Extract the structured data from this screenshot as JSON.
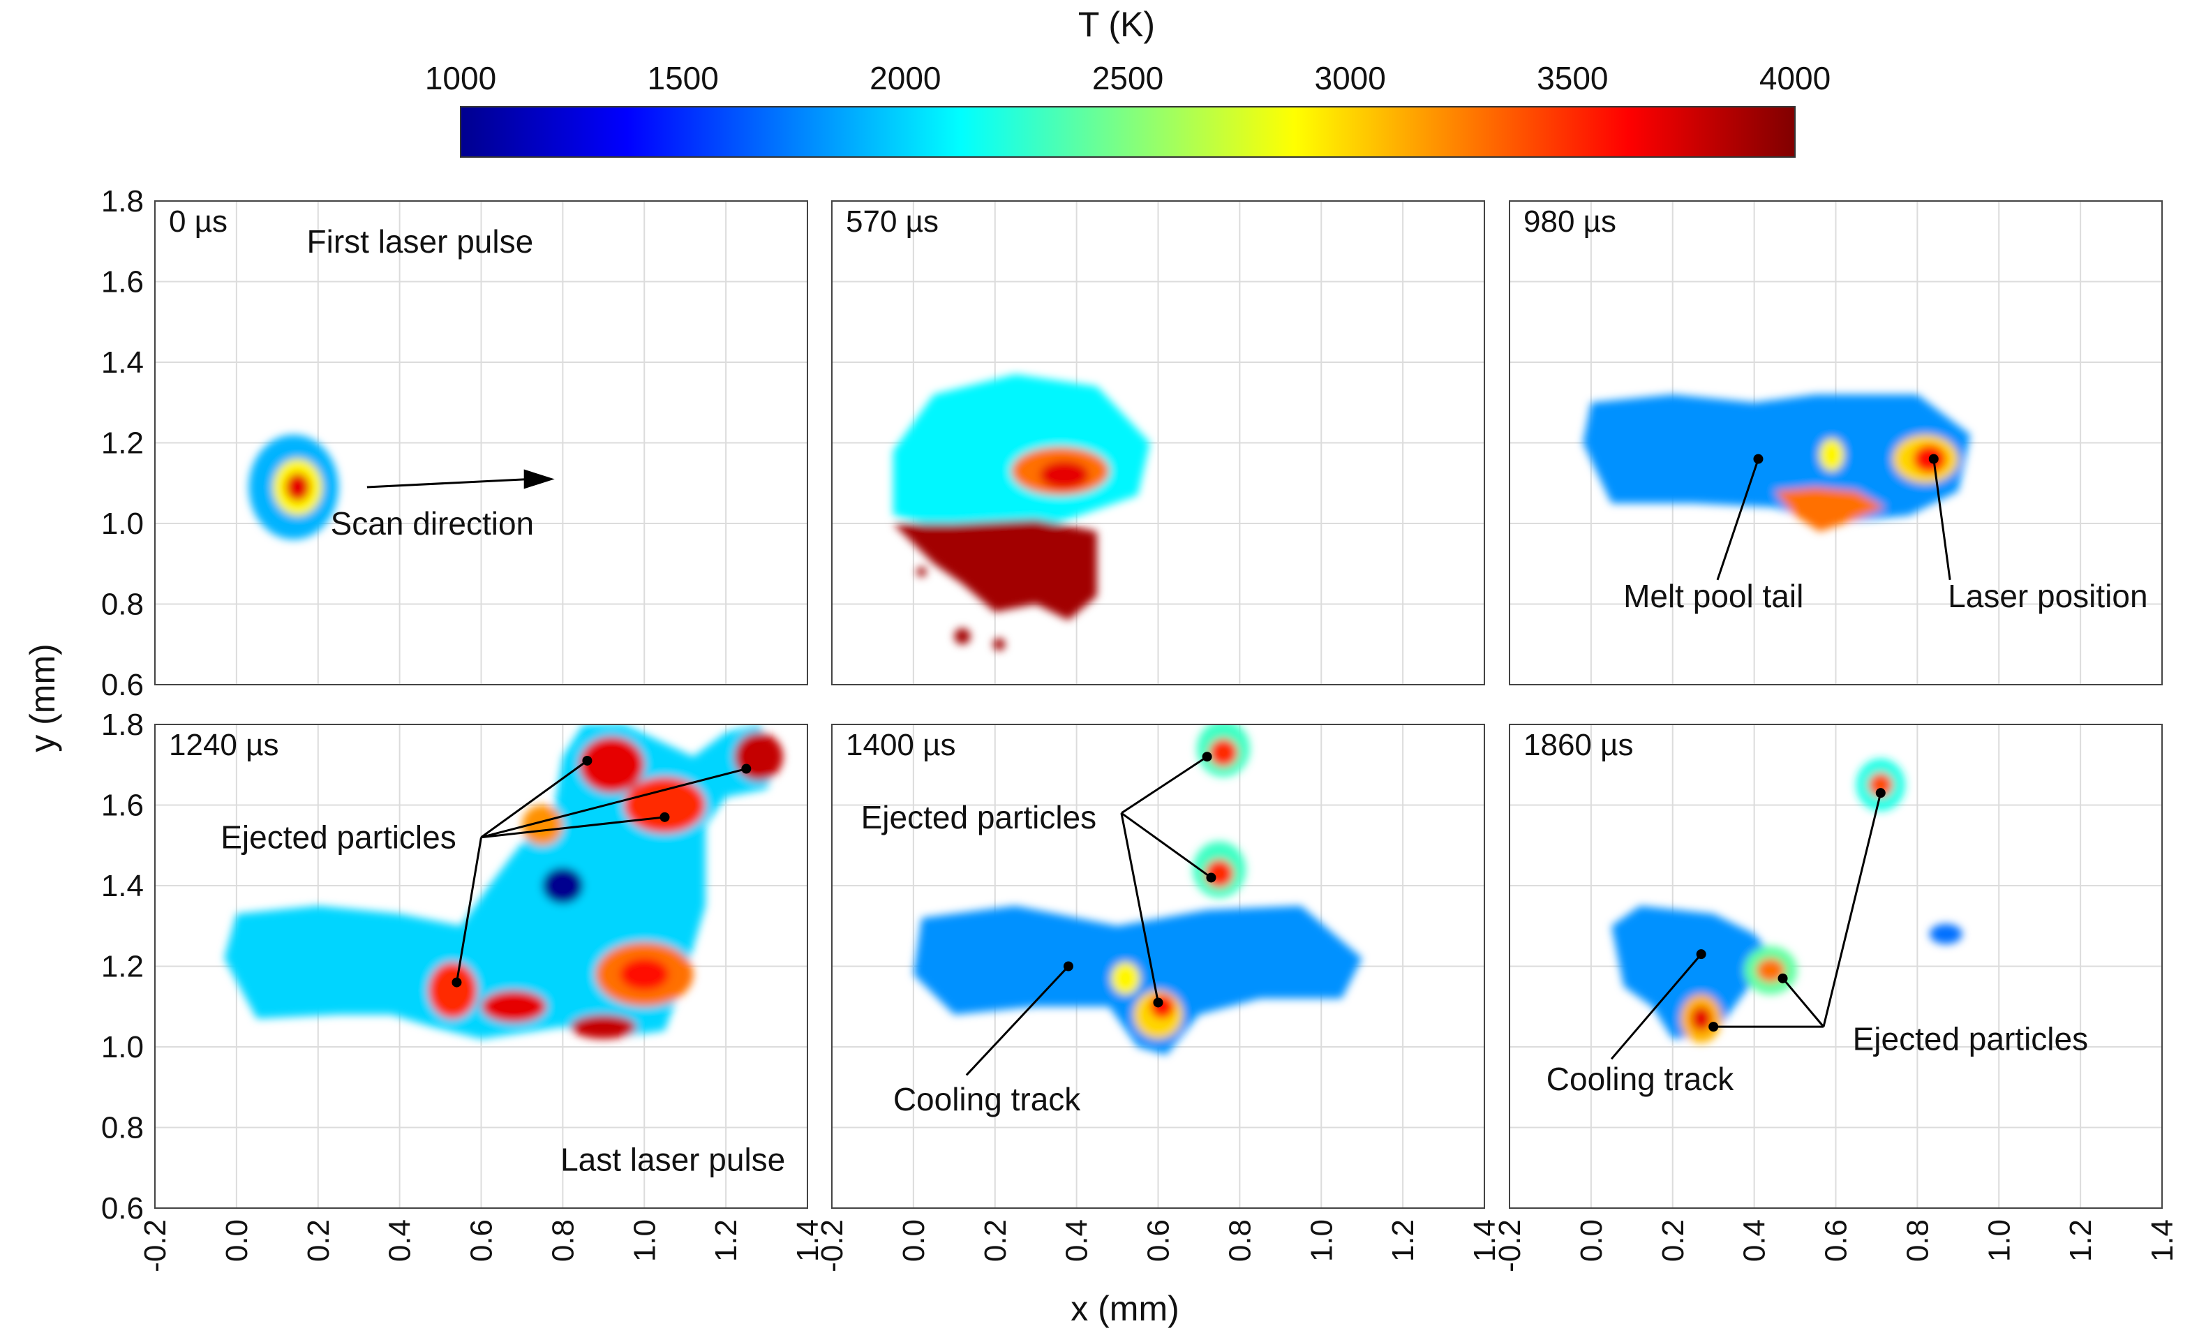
{
  "chart_data": {
    "type": "heatmap",
    "colorbar": {
      "title": "T (K)",
      "min": 1000,
      "max": 4000,
      "ticks": [
        "1000",
        "1500",
        "2000",
        "2500",
        "3000",
        "3500",
        "4000"
      ],
      "colormap": [
        "#00008f",
        "#0000ff",
        "#0080ff",
        "#00ffff",
        "#80ff80",
        "#ffff00",
        "#ff8000",
        "#ff0000",
        "#800000"
      ]
    },
    "xlabel": "x (mm)",
    "ylabel": "y (mm)",
    "xlim": [
      -0.2,
      1.4
    ],
    "ylim": [
      0.6,
      1.8
    ],
    "xticks": [
      "-0.2",
      "0.0",
      "0.2",
      "0.4",
      "0.6",
      "0.8",
      "1.0",
      "1.2",
      "1.4"
    ],
    "yticks": [
      "0.6",
      "0.8",
      "1.0",
      "1.2",
      "1.4",
      "1.6",
      "1.8"
    ],
    "panels": [
      {
        "time": "0 µs",
        "blobs": [
          {
            "type": "ellipse",
            "cx": 0.14,
            "cy": 1.09,
            "rx": 0.11,
            "ry": 0.13,
            "t": 1900
          },
          {
            "type": "ellipse",
            "cx": 0.15,
            "cy": 1.09,
            "rx": 0.06,
            "ry": 0.07,
            "t": 2900
          },
          {
            "type": "ellipse",
            "cx": 0.15,
            "cy": 1.09,
            "rx": 0.03,
            "ry": 0.035,
            "t": 3700
          }
        ],
        "labels": [
          {
            "text": "First laser pulse",
            "x": 0.45,
            "y": 1.7
          },
          {
            "text": "Scan direction",
            "x": 0.48,
            "y": 1.0
          }
        ],
        "arrows": [
          {
            "from": [
              0.32,
              1.09
            ],
            "to": [
              0.78,
              1.11
            ]
          }
        ],
        "leaders": []
      },
      {
        "time": "570 µs",
        "blobs": [
          {
            "type": "poly",
            "pts": [
              [
                -0.05,
                1.02
              ],
              [
                -0.05,
                1.18
              ],
              [
                0.05,
                1.32
              ],
              [
                0.25,
                1.37
              ],
              [
                0.45,
                1.34
              ],
              [
                0.58,
                1.2
              ],
              [
                0.55,
                1.07
              ],
              [
                0.35,
                1.0
              ],
              [
                0.1,
                0.98
              ]
            ],
            "t": 2100
          },
          {
            "type": "poly",
            "pts": [
              [
                -0.05,
                1.0
              ],
              [
                0.1,
                1.0
              ],
              [
                0.3,
                1.01
              ],
              [
                0.45,
                0.98
              ],
              [
                0.45,
                0.82
              ],
              [
                0.38,
                0.76
              ],
              [
                0.3,
                0.8
              ],
              [
                0.2,
                0.78
              ],
              [
                0.12,
                0.85
              ],
              [
                0.05,
                0.9
              ]
            ],
            "t": 3900
          },
          {
            "type": "ellipse",
            "cx": 0.36,
            "cy": 1.13,
            "rx": 0.12,
            "ry": 0.06,
            "t": 3300
          },
          {
            "type": "ellipse",
            "cx": 0.37,
            "cy": 1.12,
            "rx": 0.06,
            "ry": 0.035,
            "t": 3700
          },
          {
            "type": "ellipse",
            "cx": 0.12,
            "cy": 0.72,
            "rx": 0.02,
            "ry": 0.02,
            "t": 3900
          },
          {
            "type": "ellipse",
            "cx": 0.21,
            "cy": 0.7,
            "rx": 0.015,
            "ry": 0.015,
            "t": 3900
          },
          {
            "type": "ellipse",
            "cx": 0.02,
            "cy": 0.88,
            "rx": 0.012,
            "ry": 0.012,
            "t": 3900
          }
        ],
        "labels": [],
        "arrows": [],
        "leaders": []
      },
      {
        "time": "980 µs",
        "blobs": [
          {
            "type": "poly",
            "pts": [
              [
                -0.02,
                1.2
              ],
              [
                0.0,
                1.3
              ],
              [
                0.2,
                1.32
              ],
              [
                0.4,
                1.3
              ],
              [
                0.55,
                1.32
              ],
              [
                0.8,
                1.32
              ],
              [
                0.93,
                1.22
              ],
              [
                0.9,
                1.08
              ],
              [
                0.78,
                1.02
              ],
              [
                0.58,
                1.0
              ],
              [
                0.45,
                1.04
              ],
              [
                0.25,
                1.05
              ],
              [
                0.05,
                1.05
              ]
            ],
            "t": 1800
          },
          {
            "type": "ellipse",
            "cx": 0.82,
            "cy": 1.16,
            "rx": 0.08,
            "ry": 0.06,
            "t": 3000
          },
          {
            "type": "ellipse",
            "cx": 0.83,
            "cy": 1.16,
            "rx": 0.04,
            "ry": 0.035,
            "t": 3600
          },
          {
            "type": "ellipse",
            "cx": 0.59,
            "cy": 1.17,
            "rx": 0.03,
            "ry": 0.04,
            "t": 2900
          },
          {
            "type": "poly",
            "pts": [
              [
                0.45,
                1.08
              ],
              [
                0.55,
                1.09
              ],
              [
                0.65,
                1.08
              ],
              [
                0.72,
                1.04
              ],
              [
                0.62,
                1.0
              ],
              [
                0.56,
                0.98
              ],
              [
                0.5,
                1.02
              ]
            ],
            "t": 3300
          }
        ],
        "labels": [
          {
            "text": "Melt pool tail",
            "x": 0.3,
            "y": 0.82
          },
          {
            "text": "Laser position",
            "x": 1.12,
            "y": 0.82
          }
        ],
        "arrows": [],
        "leaders": [
          {
            "from": [
              0.31,
              0.86
            ],
            "dot": [
              0.41,
              1.16
            ]
          },
          {
            "from": [
              0.88,
              0.86
            ],
            "dot": [
              0.84,
              1.16
            ]
          }
        ]
      },
      {
        "time": "1240 µs",
        "blobs": [
          {
            "type": "poly",
            "pts": [
              [
                -0.03,
                1.22
              ],
              [
                0.0,
                1.33
              ],
              [
                0.2,
                1.35
              ],
              [
                0.4,
                1.33
              ],
              [
                0.55,
                1.3
              ],
              [
                0.62,
                1.4
              ],
              [
                0.68,
                1.48
              ],
              [
                0.78,
                1.6
              ],
              [
                0.8,
                1.72
              ],
              [
                0.85,
                1.8
              ],
              [
                0.95,
                1.8
              ],
              [
                1.12,
                1.72
              ],
              [
                1.2,
                1.78
              ],
              [
                1.28,
                1.8
              ],
              [
                1.33,
                1.72
              ],
              [
                1.3,
                1.64
              ],
              [
                1.2,
                1.62
              ],
              [
                1.15,
                1.55
              ],
              [
                1.15,
                1.35
              ],
              [
                1.1,
                1.18
              ],
              [
                1.05,
                1.04
              ],
              [
                0.9,
                1.02
              ],
              [
                0.8,
                1.05
              ],
              [
                0.6,
                1.02
              ],
              [
                0.48,
                1.05
              ],
              [
                0.38,
                1.08
              ],
              [
                0.25,
                1.08
              ],
              [
                0.05,
                1.07
              ]
            ],
            "t": 2000
          },
          {
            "type": "ellipse",
            "cx": 1.0,
            "cy": 1.18,
            "rx": 0.12,
            "ry": 0.08,
            "t": 3300
          },
          {
            "type": "ellipse",
            "cx": 1.0,
            "cy": 1.18,
            "rx": 0.06,
            "ry": 0.04,
            "t": 3600
          },
          {
            "type": "ellipse",
            "cx": 0.53,
            "cy": 1.14,
            "rx": 0.06,
            "ry": 0.07,
            "t": 3500
          },
          {
            "type": "ellipse",
            "cx": 0.68,
            "cy": 1.1,
            "rx": 0.08,
            "ry": 0.04,
            "t": 3700
          },
          {
            "type": "ellipse",
            "cx": 0.9,
            "cy": 1.05,
            "rx": 0.08,
            "ry": 0.03,
            "t": 3800
          },
          {
            "type": "ellipse",
            "cx": 0.92,
            "cy": 1.7,
            "rx": 0.08,
            "ry": 0.07,
            "t": 3700
          },
          {
            "type": "ellipse",
            "cx": 1.05,
            "cy": 1.6,
            "rx": 0.1,
            "ry": 0.07,
            "t": 3500
          },
          {
            "type": "ellipse",
            "cx": 1.28,
            "cy": 1.72,
            "rx": 0.06,
            "ry": 0.06,
            "t": 3800
          },
          {
            "type": "ellipse",
            "cx": 0.75,
            "cy": 1.55,
            "rx": 0.05,
            "ry": 0.05,
            "t": 3200
          },
          {
            "type": "ellipse",
            "cx": 0.8,
            "cy": 1.4,
            "rx": 0.05,
            "ry": 0.045,
            "t": 1000
          }
        ],
        "labels": [
          {
            "text": "Ejected particles",
            "x": 0.25,
            "y": 1.52
          },
          {
            "text": "Last laser pulse",
            "x": 1.07,
            "y": 0.72
          }
        ],
        "arrows": [],
        "leaders": [
          {
            "from": [
              0.6,
              1.52
            ],
            "dot": [
              0.86,
              1.71
            ]
          },
          {
            "from": [
              0.6,
              1.52
            ],
            "dot": [
              1.05,
              1.57
            ]
          },
          {
            "from": [
              0.6,
              1.52
            ],
            "dot": [
              1.25,
              1.69
            ]
          },
          {
            "from": [
              0.6,
              1.52
            ],
            "dot": [
              0.54,
              1.16
            ]
          }
        ]
      },
      {
        "time": "1400 µs",
        "blobs": [
          {
            "type": "poly",
            "pts": [
              [
                0.0,
                1.18
              ],
              [
                0.02,
                1.32
              ],
              [
                0.25,
                1.35
              ],
              [
                0.5,
                1.3
              ],
              [
                0.72,
                1.34
              ],
              [
                0.95,
                1.35
              ],
              [
                1.1,
                1.22
              ],
              [
                1.05,
                1.12
              ],
              [
                0.85,
                1.12
              ],
              [
                0.7,
                1.08
              ],
              [
                0.62,
                0.98
              ],
              [
                0.55,
                1.0
              ],
              [
                0.48,
                1.1
              ],
              [
                0.3,
                1.1
              ],
              [
                0.1,
                1.08
              ]
            ],
            "t": 1800
          },
          {
            "type": "ellipse",
            "cx": 0.6,
            "cy": 1.08,
            "rx": 0.06,
            "ry": 0.06,
            "t": 3000
          },
          {
            "type": "ellipse",
            "cx": 0.61,
            "cy": 1.1,
            "rx": 0.03,
            "ry": 0.03,
            "t": 3600
          },
          {
            "type": "ellipse",
            "cx": 0.52,
            "cy": 1.17,
            "rx": 0.035,
            "ry": 0.04,
            "t": 2900
          },
          {
            "type": "ellipse",
            "cx": 0.76,
            "cy": 1.74,
            "rx": 0.065,
            "ry": 0.07,
            "t": 2300
          },
          {
            "type": "ellipse",
            "cx": 0.76,
            "cy": 1.73,
            "rx": 0.035,
            "ry": 0.035,
            "t": 3500
          },
          {
            "type": "ellipse",
            "cx": 0.75,
            "cy": 1.44,
            "rx": 0.065,
            "ry": 0.07,
            "t": 2300
          },
          {
            "type": "ellipse",
            "cx": 0.75,
            "cy": 1.43,
            "rx": 0.035,
            "ry": 0.035,
            "t": 3500
          }
        ],
        "labels": [
          {
            "text": "Ejected particles",
            "x": 0.16,
            "y": 1.57
          },
          {
            "text": "Cooling track",
            "x": 0.18,
            "y": 0.87
          }
        ],
        "arrows": [],
        "leaders": [
          {
            "from": [
              0.51,
              1.58
            ],
            "dot": [
              0.72,
              1.72
            ]
          },
          {
            "from": [
              0.51,
              1.58
            ],
            "dot": [
              0.73,
              1.42
            ]
          },
          {
            "from": [
              0.51,
              1.58
            ],
            "dot": [
              0.6,
              1.11
            ]
          },
          {
            "from": [
              0.13,
              0.93
            ],
            "dot": [
              0.38,
              1.2
            ]
          }
        ]
      },
      {
        "time": "1860 µs",
        "blobs": [
          {
            "type": "poly",
            "pts": [
              [
                0.05,
                1.3
              ],
              [
                0.12,
                1.35
              ],
              [
                0.3,
                1.33
              ],
              [
                0.4,
                1.28
              ],
              [
                0.45,
                1.22
              ],
              [
                0.38,
                1.14
              ],
              [
                0.3,
                1.03
              ],
              [
                0.2,
                1.02
              ],
              [
                0.15,
                1.1
              ],
              [
                0.08,
                1.15
              ]
            ],
            "t": 1800
          },
          {
            "type": "ellipse",
            "cx": 0.27,
            "cy": 1.07,
            "rx": 0.05,
            "ry": 0.06,
            "t": 3100
          },
          {
            "type": "ellipse",
            "cx": 0.27,
            "cy": 1.07,
            "rx": 0.025,
            "ry": 0.03,
            "t": 3700
          },
          {
            "type": "ellipse",
            "cx": 0.44,
            "cy": 1.19,
            "rx": 0.065,
            "ry": 0.06,
            "t": 2400
          },
          {
            "type": "ellipse",
            "cx": 0.44,
            "cy": 1.19,
            "rx": 0.035,
            "ry": 0.03,
            "t": 3300
          },
          {
            "type": "ellipse",
            "cx": 0.71,
            "cy": 1.65,
            "rx": 0.06,
            "ry": 0.065,
            "t": 2200
          },
          {
            "type": "ellipse",
            "cx": 0.71,
            "cy": 1.65,
            "rx": 0.03,
            "ry": 0.03,
            "t": 3400
          },
          {
            "type": "ellipse",
            "cx": 0.87,
            "cy": 1.28,
            "rx": 0.04,
            "ry": 0.025,
            "t": 1700
          }
        ],
        "labels": [
          {
            "text": "Cooling track",
            "x": 0.12,
            "y": 0.92
          },
          {
            "text": "Ejected particles",
            "x": 0.93,
            "y": 1.02
          }
        ],
        "arrows": [],
        "leaders": [
          {
            "from": [
              0.05,
              0.97
            ],
            "dot": [
              0.27,
              1.23
            ]
          },
          {
            "from": [
              0.57,
              1.05
            ],
            "dot": [
              0.3,
              1.05
            ]
          },
          {
            "from": [
              0.57,
              1.05
            ],
            "dot": [
              0.47,
              1.17
            ]
          },
          {
            "from": [
              0.57,
              1.05
            ],
            "dot": [
              0.71,
              1.63
            ]
          }
        ]
      }
    ]
  }
}
